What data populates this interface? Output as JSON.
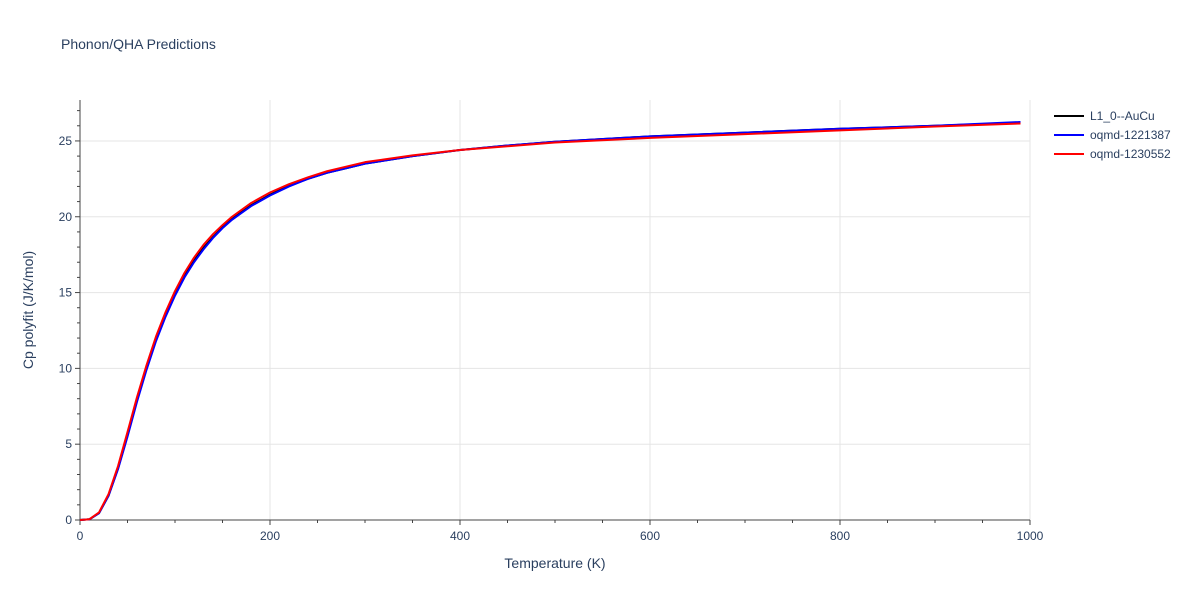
{
  "chart_data": {
    "type": "line",
    "title": "Phonon/QHA Predictions",
    "xlabel": "Temperature (K)",
    "ylabel": "Cp polyfit (J/K/mol)",
    "xlim": [
      0,
      1000
    ],
    "ylim": [
      0,
      27.7
    ],
    "xticks": [
      0,
      200,
      400,
      600,
      800,
      1000
    ],
    "yticks": [
      0,
      5,
      10,
      15,
      20,
      25
    ],
    "grid": true,
    "legend_position": "top-right",
    "series": [
      {
        "name": "L1_0--AuCu",
        "color": "#000000",
        "x": [
          0,
          10,
          20,
          30,
          40,
          50,
          60,
          70,
          80,
          90,
          100,
          110,
          120,
          130,
          140,
          150,
          160,
          170,
          180,
          190,
          200,
          220,
          240,
          260,
          280,
          300,
          350,
          400,
          450,
          500,
          600,
          700,
          800,
          900,
          990
        ],
        "y": [
          0,
          0.05,
          0.45,
          1.6,
          3.4,
          5.6,
          7.9,
          10.0,
          11.9,
          13.5,
          14.9,
          16.1,
          17.1,
          17.95,
          18.65,
          19.3,
          19.85,
          20.3,
          20.75,
          21.1,
          21.45,
          22.05,
          22.5,
          22.9,
          23.2,
          23.5,
          24.0,
          24.4,
          24.7,
          24.95,
          25.3,
          25.55,
          25.8,
          26.0,
          26.2
        ]
      },
      {
        "name": "oqmd-1221387",
        "color": "#0000ff",
        "x": [
          0,
          10,
          20,
          30,
          40,
          50,
          60,
          70,
          80,
          90,
          100,
          110,
          120,
          130,
          140,
          150,
          160,
          170,
          180,
          190,
          200,
          220,
          240,
          260,
          280,
          300,
          350,
          400,
          450,
          500,
          600,
          700,
          800,
          900,
          990
        ],
        "y": [
          0,
          0.05,
          0.45,
          1.6,
          3.35,
          5.5,
          7.8,
          9.9,
          11.8,
          13.4,
          14.8,
          16.0,
          17.0,
          17.85,
          18.6,
          19.25,
          19.8,
          20.25,
          20.7,
          21.05,
          21.4,
          22.0,
          22.5,
          22.9,
          23.2,
          23.5,
          24.0,
          24.4,
          24.7,
          24.95,
          25.3,
          25.55,
          25.8,
          26.0,
          26.25
        ]
      },
      {
        "name": "oqmd-1230552",
        "color": "#ff0000",
        "x": [
          0,
          10,
          20,
          30,
          40,
          50,
          60,
          70,
          80,
          90,
          100,
          110,
          120,
          130,
          140,
          150,
          160,
          170,
          180,
          190,
          200,
          220,
          240,
          260,
          280,
          300,
          350,
          400,
          450,
          500,
          600,
          700,
          800,
          900,
          990
        ],
        "y": [
          0,
          0.05,
          0.5,
          1.7,
          3.55,
          5.8,
          8.1,
          10.2,
          12.1,
          13.7,
          15.1,
          16.3,
          17.3,
          18.15,
          18.85,
          19.45,
          20.0,
          20.45,
          20.9,
          21.25,
          21.6,
          22.15,
          22.6,
          23.0,
          23.3,
          23.6,
          24.05,
          24.4,
          24.65,
          24.9,
          25.2,
          25.45,
          25.7,
          25.95,
          26.15
        ]
      }
    ]
  }
}
